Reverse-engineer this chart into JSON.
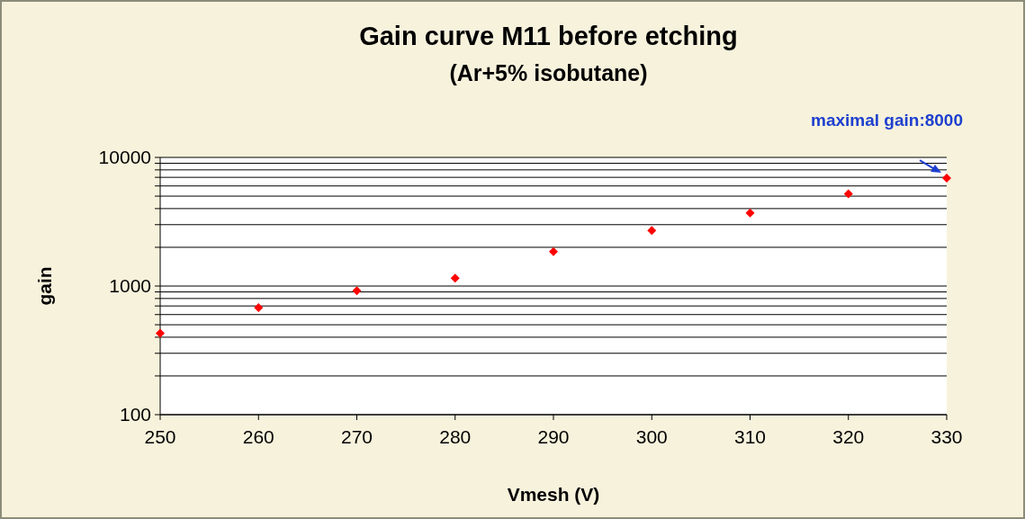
{
  "chart_data": {
    "type": "scatter",
    "title": "Gain curve M11 before etching",
    "subtitle": "(Ar+5% isobutane)",
    "xlabel": "Vmesh (V)",
    "ylabel": "gain",
    "x": [
      250,
      260,
      270,
      280,
      290,
      300,
      310,
      320,
      330
    ],
    "series": [
      {
        "color": "#ff0000",
        "values": [
          430,
          680,
          920,
          1150,
          1850,
          2700,
          3700,
          5200,
          6900
        ]
      }
    ],
    "marker": "diamond",
    "log": "y",
    "grid": "y",
    "xlim": [
      250,
      330
    ],
    "xticks": [
      250,
      260,
      270,
      280,
      290,
      300,
      310,
      320,
      330
    ],
    "ylim": [
      100,
      10000
    ],
    "yticks": [
      100,
      {
        "value": 200,
        "label": null
      },
      {
        "value": 300,
        "label": null
      },
      {
        "value": 400,
        "label": null
      },
      {
        "value": 500,
        "label": null
      },
      {
        "value": 600,
        "label": null
      },
      {
        "value": 700,
        "label": null
      },
      {
        "value": 800,
        "label": null
      },
      {
        "value": 900,
        "label": null
      },
      1000,
      {
        "value": 2000,
        "label": null
      },
      {
        "value": 3000,
        "label": null
      },
      {
        "value": 4000,
        "label": null
      },
      {
        "value": 5000,
        "label": null
      },
      {
        "value": 6000,
        "label": null
      },
      {
        "value": 7000,
        "label": null
      },
      {
        "value": 8000,
        "label": null
      },
      {
        "value": 9000,
        "label": null
      },
      10000
    ],
    "annotations": [
      {
        "text": "maximal gain:8000",
        "x": 330,
        "y": 6900
      }
    ]
  }
}
